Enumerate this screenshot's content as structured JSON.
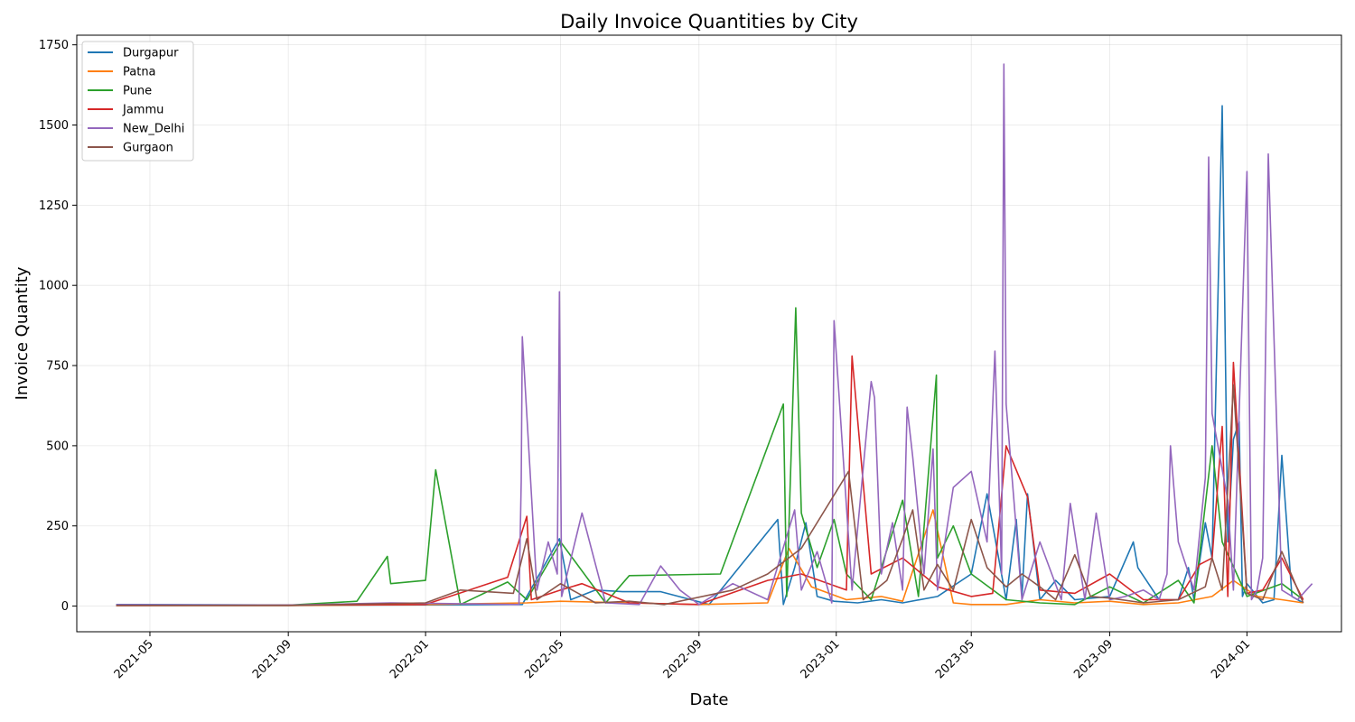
{
  "chart_data": {
    "type": "line",
    "title": "Daily Invoice Quantities by City",
    "xlabel": "Date",
    "ylabel": "Invoice Quantity",
    "xlim": [
      "2021-02-25",
      "2024-03-25"
    ],
    "ylim": [
      -80,
      1780
    ],
    "x_ticks": [
      "2021-05",
      "2021-09",
      "2022-01",
      "2022-05",
      "2022-09",
      "2023-01",
      "2023-05",
      "2023-09",
      "2024-01"
    ],
    "y_ticks": [
      0,
      250,
      500,
      750,
      1000,
      1250,
      1500,
      1750
    ],
    "grid": true,
    "legend_position": "upper-left",
    "series": [
      {
        "name": "Durgapur",
        "color": "#1f77b4",
        "x": [
          "2021-04-01",
          "2021-06-15",
          "2021-10-01",
          "2022-03-28",
          "2022-04-30",
          "2022-05-10",
          "2022-06-01",
          "2022-06-25",
          "2022-07-29",
          "2022-09-10",
          "2022-11-10",
          "2022-11-15",
          "2022-11-25",
          "2022-12-05",
          "2022-12-15",
          "2022-12-30",
          "2023-01-20",
          "2023-02-10",
          "2023-03-01",
          "2023-04-01",
          "2023-05-01",
          "2023-05-15",
          "2023-06-01",
          "2023-06-10",
          "2023-06-15",
          "2023-06-20",
          "2023-07-01",
          "2023-07-15",
          "2023-08-01",
          "2023-09-01",
          "2023-09-22",
          "2023-09-26",
          "2023-10-15",
          "2023-11-01",
          "2023-11-10",
          "2023-11-15",
          "2023-11-25",
          "2023-12-01",
          "2023-12-10",
          "2023-12-15",
          "2023-12-20",
          "2023-12-25",
          "2023-12-28",
          "2024-01-01",
          "2024-01-15",
          "2024-01-25",
          "2024-02-01",
          "2024-02-10",
          "2024-02-20"
        ],
        "y": [
          5,
          4,
          3,
          5,
          210,
          20,
          50,
          45,
          45,
          5,
          270,
          5,
          120,
          260,
          30,
          15,
          10,
          20,
          10,
          30,
          100,
          350,
          20,
          270,
          30,
          350,
          20,
          80,
          20,
          30,
          200,
          120,
          20,
          20,
          120,
          20,
          260,
          150,
          1560,
          200,
          520,
          575,
          30,
          70,
          10,
          20,
          470,
          30,
          10
        ]
      },
      {
        "name": "Patna",
        "color": "#ff7f0e",
        "x": [
          "2021-04-01",
          "2021-09-01",
          "2022-01-01",
          "2022-04-01",
          "2022-05-01",
          "2022-07-01",
          "2022-09-01",
          "2022-11-01",
          "2022-11-20",
          "2022-12-10",
          "2023-01-10",
          "2023-02-10",
          "2023-03-01",
          "2023-03-28",
          "2023-04-15",
          "2023-05-01",
          "2023-06-01",
          "2023-07-01",
          "2023-08-01",
          "2023-09-01",
          "2023-10-01",
          "2023-11-01",
          "2023-12-01",
          "2023-12-20",
          "2024-01-10",
          "2024-02-01",
          "2024-02-20"
        ],
        "y": [
          2,
          2,
          5,
          10,
          15,
          10,
          5,
          10,
          180,
          60,
          20,
          30,
          15,
          300,
          10,
          5,
          5,
          20,
          10,
          15,
          5,
          10,
          30,
          80,
          30,
          20,
          10
        ]
      },
      {
        "name": "Pune",
        "color": "#2ca02c",
        "x": [
          "2021-04-01",
          "2021-09-01",
          "2021-11-01",
          "2021-11-28",
          "2021-12-01",
          "2022-01-01",
          "2022-01-10",
          "2022-02-01",
          "2022-03-15",
          "2022-04-01",
          "2022-05-01",
          "2022-06-10",
          "2022-07-01",
          "2022-09-20",
          "2022-11-15",
          "2022-11-18",
          "2022-11-26",
          "2022-12-01",
          "2022-12-15",
          "2022-12-30",
          "2023-01-10",
          "2023-02-01",
          "2023-03-01",
          "2023-03-15",
          "2023-03-31",
          "2023-04-01",
          "2023-04-15",
          "2023-05-01",
          "2023-06-01",
          "2023-07-01",
          "2023-08-01",
          "2023-09-01",
          "2023-10-01",
          "2023-11-01",
          "2023-11-15",
          "2023-12-01",
          "2023-12-10",
          "2024-01-01",
          "2024-02-01",
          "2024-02-20"
        ],
        "y": [
          3,
          3,
          15,
          155,
          70,
          80,
          425,
          5,
          75,
          20,
          200,
          10,
          95,
          100,
          630,
          30,
          930,
          290,
          120,
          270,
          100,
          20,
          330,
          30,
          720,
          150,
          250,
          100,
          20,
          10,
          5,
          60,
          10,
          80,
          10,
          500,
          200,
          30,
          70,
          20
        ]
      },
      {
        "name": "Jammu",
        "color": "#d62728",
        "x": [
          "2021-04-01",
          "2021-09-01",
          "2022-01-01",
          "2022-03-15",
          "2022-04-01",
          "2022-04-05",
          "2022-05-01",
          "2022-05-20",
          "2022-07-01",
          "2022-09-01",
          "2022-11-01",
          "2022-12-01",
          "2023-01-10",
          "2023-01-15",
          "2023-02-01",
          "2023-03-01",
          "2023-04-01",
          "2023-05-01",
          "2023-05-20",
          "2023-06-01",
          "2023-06-20",
          "2023-07-01",
          "2023-08-01",
          "2023-09-01",
          "2023-10-01",
          "2023-11-01",
          "2023-11-20",
          "2023-12-01",
          "2023-12-10",
          "2023-12-15",
          "2023-12-20",
          "2024-01-01",
          "2024-01-15",
          "2024-02-01",
          "2024-02-20"
        ],
        "y": [
          2,
          3,
          5,
          90,
          280,
          20,
          50,
          70,
          10,
          5,
          80,
          100,
          50,
          780,
          100,
          150,
          60,
          30,
          40,
          500,
          340,
          50,
          40,
          100,
          20,
          20,
          130,
          150,
          560,
          30,
          760,
          40,
          50,
          150,
          20
        ]
      },
      {
        "name": "New_Delhi",
        "color": "#9467bd",
        "x": [
          "2021-04-01",
          "2021-09-01",
          "2021-12-01",
          "2022-03-25",
          "2022-03-27",
          "2022-03-28",
          "2022-04-10",
          "2022-04-20",
          "2022-04-28",
          "2022-04-30",
          "2022-05-02",
          "2022-05-20",
          "2022-06-10",
          "2022-07-10",
          "2022-07-29",
          "2022-08-15",
          "2022-09-01",
          "2022-10-01",
          "2022-11-01",
          "2022-11-25",
          "2022-12-01",
          "2022-12-15",
          "2022-12-28",
          "2022-12-30",
          "2023-01-15",
          "2023-02-01",
          "2023-02-04",
          "2023-02-10",
          "2023-02-20",
          "2023-03-01",
          "2023-03-05",
          "2023-03-10",
          "2023-03-20",
          "2023-03-28",
          "2023-04-01",
          "2023-04-15",
          "2023-05-01",
          "2023-05-15",
          "2023-05-18",
          "2023-05-22",
          "2023-05-28",
          "2023-05-30",
          "2023-06-01",
          "2023-06-15",
          "2023-07-01",
          "2023-07-20",
          "2023-07-28",
          "2023-08-10",
          "2023-08-20",
          "2023-09-01",
          "2023-09-15",
          "2023-10-01",
          "2023-10-15",
          "2023-10-22",
          "2023-10-25",
          "2023-11-01",
          "2023-11-15",
          "2023-11-25",
          "2023-11-28",
          "2023-12-01",
          "2023-12-15",
          "2023-12-20",
          "2024-01-01",
          "2024-01-05",
          "2024-01-10",
          "2024-01-15",
          "2024-01-20",
          "2024-02-01",
          "2024-02-15",
          "2024-02-28"
        ],
        "y": [
          4,
          3,
          10,
          5,
          390,
          840,
          50,
          200,
          100,
          980,
          30,
          290,
          10,
          5,
          125,
          50,
          5,
          70,
          20,
          300,
          50,
          170,
          10,
          890,
          50,
          700,
          650,
          100,
          260,
          50,
          620,
          465,
          100,
          490,
          50,
          370,
          420,
          200,
          450,
          795,
          100,
          1690,
          630,
          20,
          200,
          20,
          320,
          20,
          290,
          20,
          30,
          50,
          20,
          100,
          500,
          200,
          50,
          400,
          1400,
          600,
          330,
          50,
          1355,
          20,
          50,
          150,
          1410,
          50,
          20,
          70
        ]
      },
      {
        "name": "Gurgaon",
        "color": "#8c564b",
        "x": [
          "2021-04-01",
          "2021-09-01",
          "2022-01-01",
          "2022-02-01",
          "2022-03-20",
          "2022-04-01",
          "2022-04-10",
          "2022-05-01",
          "2022-06-01",
          "2022-07-01",
          "2022-08-01",
          "2022-10-01",
          "2022-11-01",
          "2022-12-01",
          "2023-01-12",
          "2023-01-25",
          "2023-02-15",
          "2023-03-01",
          "2023-03-10",
          "2023-03-20",
          "2023-04-01",
          "2023-04-15",
          "2023-05-01",
          "2023-05-15",
          "2023-06-01",
          "2023-06-15",
          "2023-07-01",
          "2023-07-15",
          "2023-08-01",
          "2023-08-15",
          "2023-09-01",
          "2023-10-01",
          "2023-11-01",
          "2023-11-25",
          "2023-12-01",
          "2023-12-10",
          "2023-12-20",
          "2024-01-01",
          "2024-01-15",
          "2024-02-01",
          "2024-02-20"
        ],
        "y": [
          2,
          2,
          10,
          50,
          40,
          210,
          20,
          70,
          10,
          15,
          5,
          50,
          100,
          180,
          420,
          20,
          80,
          210,
          300,
          50,
          130,
          50,
          270,
          120,
          60,
          100,
          60,
          20,
          160,
          30,
          25,
          10,
          20,
          60,
          150,
          50,
          690,
          40,
          20,
          170,
          10
        ]
      }
    ]
  }
}
